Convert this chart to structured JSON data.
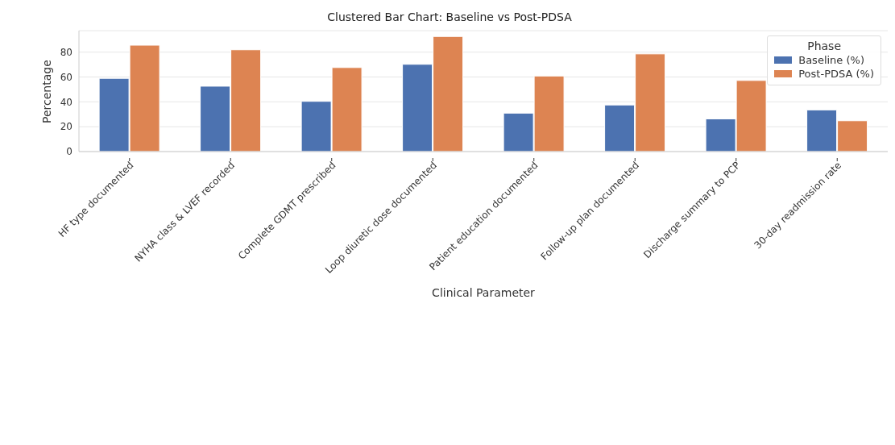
{
  "chart_data": {
    "type": "bar",
    "title": "Clustered Bar Chart: Baseline vs Post-PDSA",
    "xlabel": "Clinical Parameter",
    "ylabel": "Percentage",
    "legend_title": "Phase",
    "categories": [
      "HF type documented",
      "NYHA class & LVEF recorded",
      "Complete GDMT prescribed",
      "Loop diuretic dose documented",
      "Patient education documented",
      "Follow-up plan documented",
      "Discharge summary to PCP",
      "30-day readmission rate"
    ],
    "series": [
      {
        "name": "Baseline (%)",
        "color": "#4c72b0",
        "values": [
          58.9,
          52.6,
          40.4,
          70.2,
          30.9,
          37.5,
          26.3,
          33.5
        ]
      },
      {
        "name": "Post-PDSA (%)",
        "color": "#dd8452",
        "values": [
          85.6,
          81.9,
          67.6,
          92.6,
          60.8,
          78.6,
          57.2,
          24.8
        ]
      }
    ],
    "ylim": [
      0,
      97.3
    ],
    "yticks": [
      0,
      20,
      40,
      60,
      80
    ],
    "grid": "y",
    "legend": "top right"
  }
}
